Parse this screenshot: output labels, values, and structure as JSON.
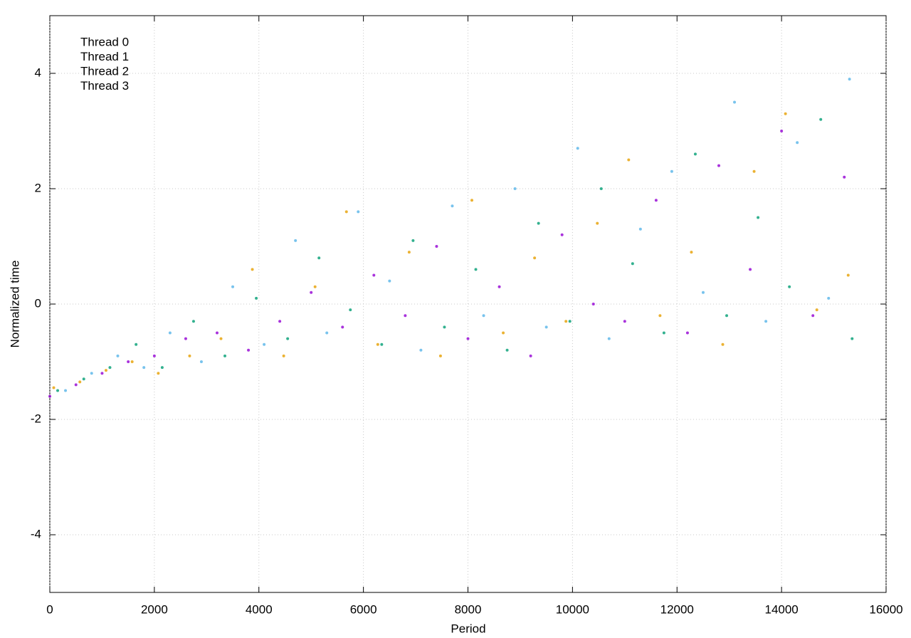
{
  "chart_data": {
    "type": "scatter",
    "x_label": "Period",
    "y_label": "Normalized time",
    "xlim": [
      0,
      16000
    ],
    "ylim": [
      -5,
      5
    ],
    "xticks": [
      0,
      2000,
      4000,
      6000,
      8000,
      10000,
      12000,
      14000,
      16000
    ],
    "yticks": [
      -4,
      -2,
      0,
      2,
      4
    ],
    "grid": true,
    "legend": "upper left",
    "series": [
      {
        "name": "Thread 0",
        "color": "#9400d3",
        "x": [
          0,
          500,
          1000,
          1500,
          2000,
          2600,
          3200,
          3800,
          4400,
          5000,
          5600,
          6200,
          6800,
          7400,
          8000,
          8600,
          9200,
          9800,
          10400,
          11000,
          11600,
          12200,
          12800,
          13400,
          14000,
          14600,
          15200
        ],
        "values": [
          -1.6,
          -1.4,
          -1.2,
          -1.0,
          -0.9,
          -0.6,
          -0.5,
          -0.8,
          -0.3,
          0.2,
          -0.4,
          0.5,
          -0.2,
          1.0,
          -0.6,
          0.3,
          -0.9,
          1.2,
          0.0,
          -0.3,
          1.8,
          -0.5,
          2.4,
          0.6,
          3.0,
          -0.2,
          2.2
        ]
      },
      {
        "name": "Thread 1",
        "color": "#009e73",
        "x": [
          150,
          650,
          1150,
          1650,
          2150,
          2750,
          3350,
          3950,
          4550,
          5150,
          5750,
          6350,
          6950,
          7550,
          8150,
          8750,
          9350,
          9950,
          10550,
          11150,
          11750,
          12350,
          12950,
          13550,
          14150,
          14750,
          15350
        ],
        "values": [
          -1.5,
          -1.3,
          -1.1,
          -0.7,
          -1.1,
          -0.3,
          -0.9,
          0.1,
          -0.6,
          0.8,
          -0.1,
          -0.7,
          1.1,
          -0.4,
          0.6,
          -0.8,
          1.4,
          -0.3,
          2.0,
          0.7,
          -0.5,
          2.6,
          -0.2,
          1.5,
          0.3,
          3.2,
          -0.6
        ]
      },
      {
        "name": "Thread 2",
        "color": "#56b4e9",
        "x": [
          300,
          800,
          1300,
          1800,
          2300,
          2900,
          3500,
          4100,
          4700,
          5300,
          5900,
          6500,
          7100,
          7700,
          8300,
          8900,
          9500,
          10100,
          10700,
          11300,
          11900,
          12500,
          13100,
          13700,
          14300,
          14900,
          15300
        ],
        "values": [
          -1.5,
          -1.2,
          -0.9,
          -1.1,
          -0.5,
          -1.0,
          0.3,
          -0.7,
          1.1,
          -0.5,
          1.6,
          0.4,
          -0.8,
          1.7,
          -0.2,
          2.0,
          -0.4,
          2.7,
          -0.6,
          1.3,
          2.3,
          0.2,
          3.5,
          -0.3,
          2.8,
          0.1,
          3.9
        ]
      },
      {
        "name": "Thread 3",
        "color": "#e69f00",
        "x": [
          75,
          575,
          1075,
          1575,
          2075,
          2675,
          3275,
          3875,
          4475,
          5075,
          5675,
          6275,
          6875,
          7475,
          8075,
          8675,
          9275,
          9875,
          10475,
          11075,
          11675,
          12275,
          12875,
          13475,
          14075,
          14675,
          15275
        ],
        "values": [
          -1.45,
          -1.35,
          -1.15,
          -1.0,
          -1.2,
          -0.9,
          -0.6,
          0.6,
          -0.9,
          0.3,
          1.6,
          -0.7,
          0.9,
          -0.9,
          1.8,
          -0.5,
          0.8,
          -0.3,
          1.4,
          2.5,
          -0.2,
          0.9,
          -0.7,
          2.3,
          3.3,
          -0.1,
          0.5
        ]
      }
    ]
  }
}
